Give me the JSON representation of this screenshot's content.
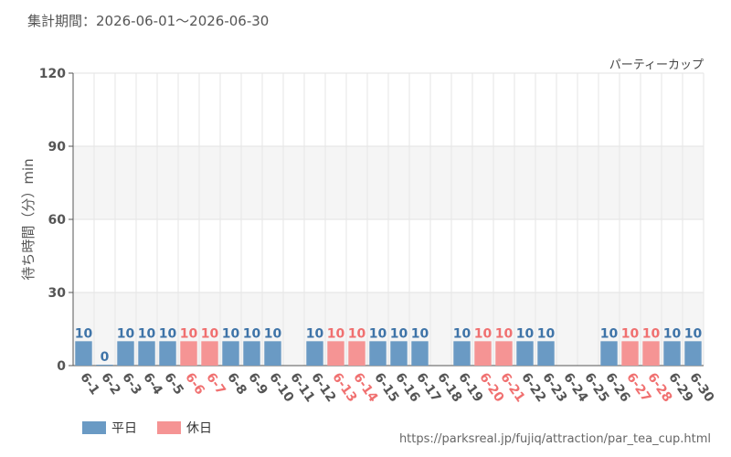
{
  "header": {
    "period_text": "集計期間：2026-06-01〜2026-06-30",
    "attraction_name": "パーティーカップ",
    "source_url": "https://parksreal.jp/fujiq/attraction/par_tea_cup.html"
  },
  "legend": {
    "weekday_label": "平日",
    "holiday_label": "休日"
  },
  "colors": {
    "weekday": "#6a9ac4",
    "holiday": "#f59494",
    "weekday_label": "#3f74a8",
    "holiday_label": "#f07070",
    "axis_tick_text": "#555555"
  },
  "chart_data": {
    "type": "bar",
    "title": "パーティーカップ",
    "ylabel": "待ち時間（分）min",
    "xlabel": "",
    "ylim": [
      0,
      120
    ],
    "yticks": [
      0,
      30,
      60,
      90,
      120
    ],
    "grid": true,
    "categories": [
      "6-1",
      "6-2",
      "6-3",
      "6-4",
      "6-5",
      "6-6",
      "6-7",
      "6-8",
      "6-9",
      "6-10",
      "6-11",
      "6-12",
      "6-13",
      "6-14",
      "6-15",
      "6-16",
      "6-17",
      "6-18",
      "6-19",
      "6-20",
      "6-21",
      "6-22",
      "6-23",
      "6-24",
      "6-25",
      "6-26",
      "6-27",
      "6-28",
      "6-29",
      "6-30"
    ],
    "values": [
      10,
      0,
      10,
      10,
      10,
      10,
      10,
      10,
      10,
      10,
      null,
      10,
      10,
      10,
      10,
      10,
      10,
      null,
      10,
      10,
      10,
      10,
      10,
      null,
      null,
      10,
      10,
      10,
      10,
      10
    ],
    "day_type": [
      "weekday",
      "weekday",
      "weekday",
      "weekday",
      "weekday",
      "holiday",
      "holiday",
      "weekday",
      "weekday",
      "weekday",
      "weekday",
      "weekday",
      "holiday",
      "holiday",
      "weekday",
      "weekday",
      "weekday",
      "weekday",
      "weekday",
      "holiday",
      "holiday",
      "weekday",
      "weekday",
      "weekday",
      "weekday",
      "weekday",
      "holiday",
      "holiday",
      "weekday",
      "weekday"
    ],
    "legend_position": "bottom-left"
  }
}
